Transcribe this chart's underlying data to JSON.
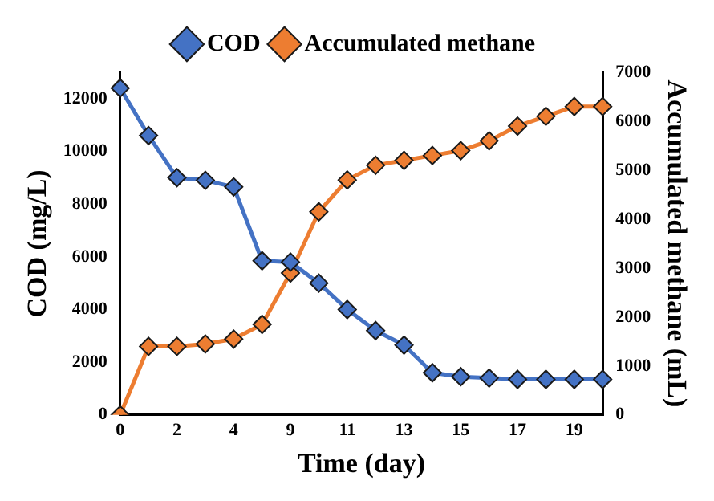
{
  "chart_data": {
    "type": "line",
    "xlabel": "Time (day)",
    "ylabel": "COD (mg/L)",
    "y2label": "Accumulated methane (mL)",
    "categories": [
      "0",
      null,
      "2",
      null,
      "4",
      null,
      "9",
      null,
      "11",
      null,
      "13",
      null,
      "15",
      null,
      "17",
      null,
      "19",
      null
    ],
    "series": [
      {
        "name": "COD",
        "color": "#4472c4",
        "values": [
          12400,
          10600,
          9000,
          8900,
          8650,
          5850,
          5800,
          5000,
          4000,
          3200,
          2650,
          1600,
          1450,
          1400,
          1350,
          1350,
          1350,
          1350
        ]
      },
      {
        "name": "Accumulated methane",
        "color": "#ed7d31",
        "axis": "y2",
        "values": [
          0,
          1400,
          1400,
          1450,
          1550,
          1850,
          2900,
          4150,
          4800,
          5100,
          5200,
          5300,
          5400,
          5600,
          5900,
          6100,
          6300,
          6300
        ]
      }
    ],
    "ylim": [
      0,
      13000
    ],
    "yticks": [
      0,
      2000,
      4000,
      6000,
      8000,
      10000,
      12000
    ],
    "y2lim": [
      0,
      7000
    ],
    "y2ticks": [
      0,
      1000,
      2000,
      3000,
      4000,
      5000,
      6000,
      7000
    ],
    "grid": false,
    "legend": "top",
    "marker": "diamond",
    "line_style": "solid"
  }
}
